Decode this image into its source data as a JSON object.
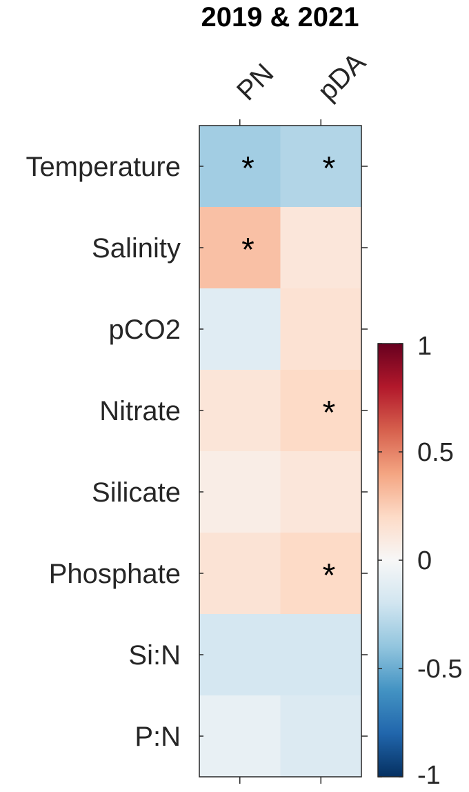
{
  "chart_data": {
    "type": "heatmap",
    "title": "2019 & 2021",
    "columns": [
      "PN",
      "pDA"
    ],
    "rows": [
      "Temperature",
      "Salinity",
      "pCO2",
      "Nitrate",
      "Silicate",
      "Phosphate",
      "Si:N",
      "P:N"
    ],
    "values": [
      [
        -0.35,
        -0.3
      ],
      [
        0.3,
        0.12
      ],
      [
        -0.12,
        0.15
      ],
      [
        0.13,
        0.2
      ],
      [
        0.07,
        0.12
      ],
      [
        0.14,
        0.2
      ],
      [
        -0.18,
        -0.18
      ],
      [
        -0.08,
        -0.14
      ]
    ],
    "significant": [
      [
        true,
        true
      ],
      [
        true,
        false
      ],
      [
        false,
        false
      ],
      [
        false,
        true
      ],
      [
        false,
        false
      ],
      [
        false,
        true
      ],
      [
        false,
        false
      ],
      [
        false,
        false
      ]
    ],
    "marker": "*",
    "colorbar": {
      "range": [
        -1,
        1
      ],
      "ticks": [
        1,
        0.5,
        0,
        -0.5,
        -1
      ],
      "tick_labels": [
        "1",
        "0.5",
        "0",
        "-0.5",
        "-1"
      ],
      "colormap": [
        "#053061",
        "#2166ac",
        "#4393c3",
        "#92c5de",
        "#d1e5f0",
        "#f7f7f7",
        "#fddbc7",
        "#f4a582",
        "#d6604d",
        "#b2182b",
        "#67001f"
      ],
      "location": "right"
    }
  }
}
